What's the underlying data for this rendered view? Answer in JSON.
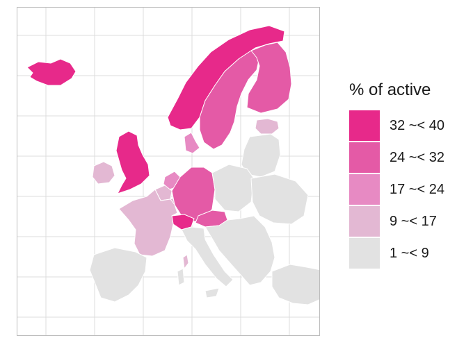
{
  "legend": {
    "title": "% of active",
    "items": [
      {
        "label": "32 ~< 40",
        "color": "#e7298a"
      },
      {
        "label": "24 ~< 32",
        "color": "#e45aa6"
      },
      {
        "label": "17 ~< 24",
        "color": "#e78ac3"
      },
      {
        "label": "9 ~< 17",
        "color": "#e3b8d3"
      },
      {
        "label": "1 ~< 9",
        "color": "#e2e2e2"
      }
    ]
  },
  "map": {
    "gridlines": true,
    "class_by_region": {
      "iceland": 0,
      "norway": 0,
      "united-kingdom": 0,
      "switzerland": 0,
      "sweden": 1,
      "finland": 1,
      "germany": 1,
      "austria": 1,
      "denmark": 2,
      "netherlands": 2,
      "ireland": 3,
      "estonia": 3,
      "france": 3,
      "belgium": 3,
      "luxembourg": 3,
      "corsica": 3
    },
    "default_class": 4
  }
}
